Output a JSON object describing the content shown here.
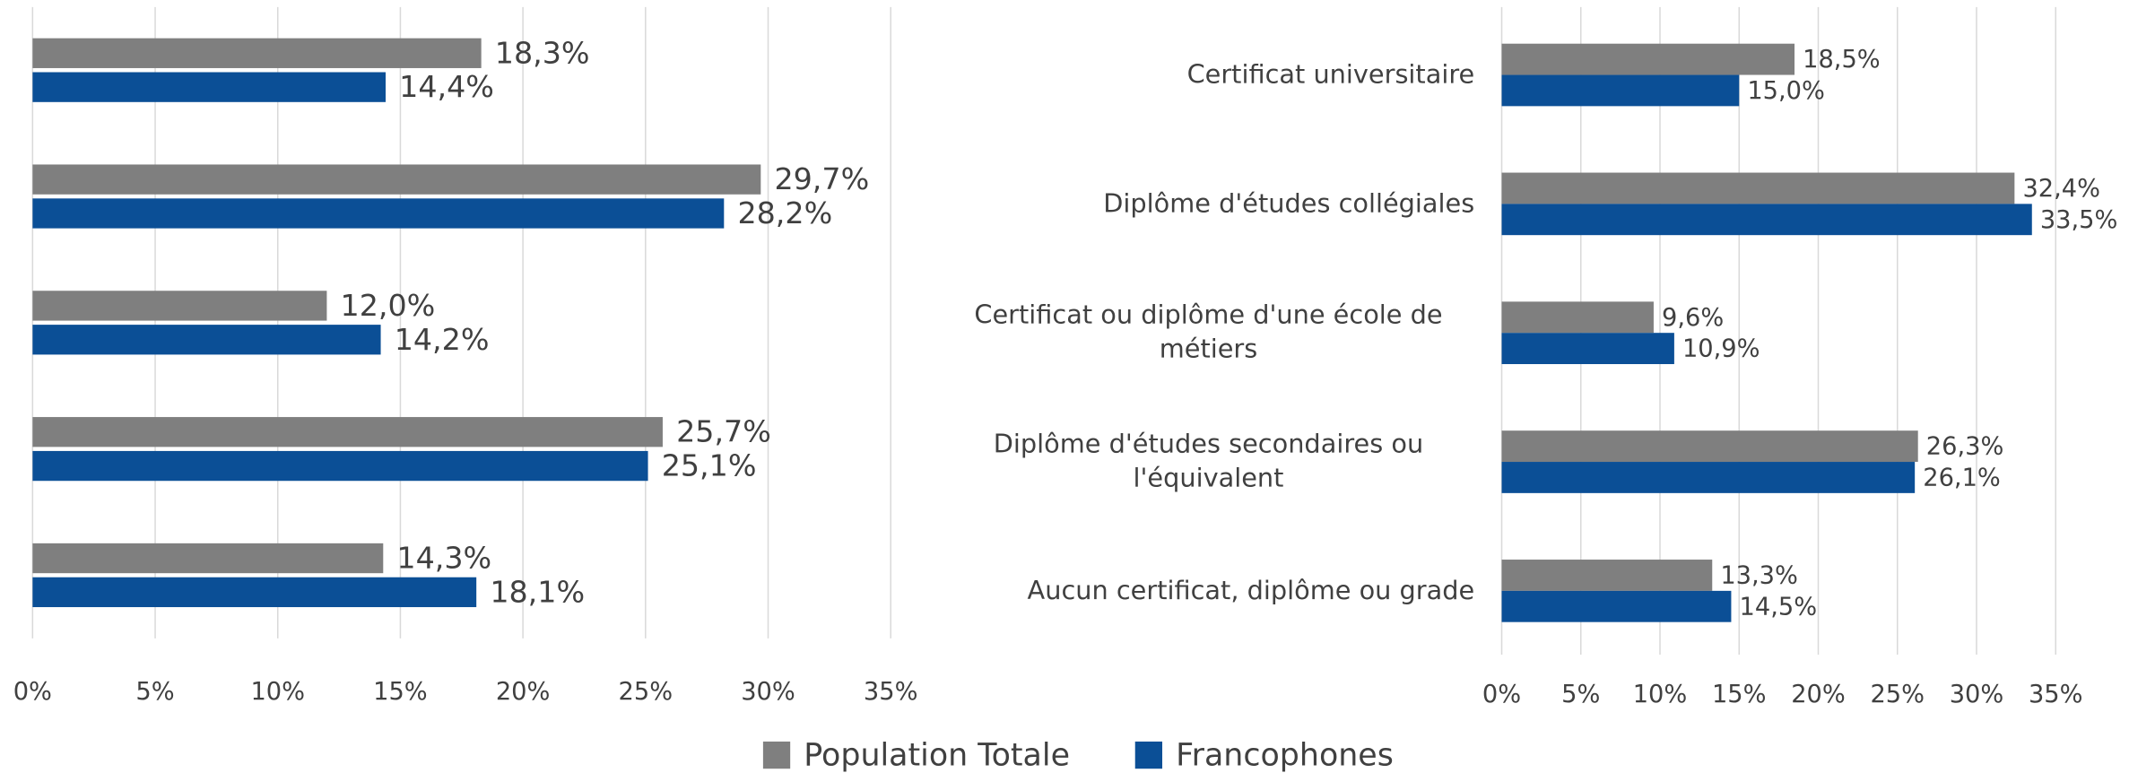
{
  "chart_data": [
    {
      "type": "bar",
      "orientation": "horizontal",
      "categories": [
        null,
        null,
        null,
        null,
        null
      ],
      "series": [
        {
          "name": "Population Totale",
          "color": "#7f7f7f",
          "values": [
            18.3,
            29.7,
            12.0,
            25.7,
            14.3
          ],
          "value_labels": [
            "18,3%",
            "29,7%",
            "12,0%",
            "25,7%",
            "14,3%"
          ]
        },
        {
          "name": "Francophones",
          "color": "#0b4f96",
          "values": [
            14.4,
            28.2,
            14.2,
            25.1,
            18.1
          ],
          "value_labels": [
            "14,4%",
            "28,2%",
            "14,2%",
            "25,1%",
            "18,1%"
          ]
        }
      ],
      "xlim": [
        0,
        35
      ],
      "xticks": [
        {
          "value": 0,
          "label": "0%"
        },
        {
          "value": 5,
          "label": "5%"
        },
        {
          "value": 10,
          "label": "10%"
        },
        {
          "value": 15,
          "label": "15%"
        },
        {
          "value": 20,
          "label": "20%"
        },
        {
          "value": 25,
          "label": "25%"
        },
        {
          "value": 30,
          "label": "30%"
        },
        {
          "value": 35,
          "label": "35%"
        }
      ],
      "grid": true
    },
    {
      "type": "bar",
      "orientation": "horizontal",
      "categories": [
        "Certificat universitaire",
        "Diplôme d'études collégiales",
        "Certificat ou diplôme d'une école de métiers",
        "Diplôme d'études secondaires ou l'équivalent",
        "Aucun certificat, diplôme ou grade"
      ],
      "series": [
        {
          "color": "#7f7f7f",
          "values": [
            18.5,
            32.4,
            9.6,
            26.3,
            13.3
          ],
          "value_labels": [
            "18,5%",
            "32,4%",
            "9,6%",
            "26,3%",
            "13,3%"
          ]
        },
        {
          "color": "#0b4f96",
          "values": [
            15.0,
            33.5,
            10.9,
            26.1,
            14.5
          ],
          "value_labels": [
            "15,0%",
            "33,5%",
            "10,9%",
            "26,1%",
            "14,5%"
          ]
        }
      ],
      "xlim": [
        0,
        35
      ],
      "xticks": [
        {
          "value": 0,
          "label": "0%"
        },
        {
          "value": 5,
          "label": "5%"
        },
        {
          "value": 10,
          "label": "10%"
        },
        {
          "value": 15,
          "label": "15%"
        },
        {
          "value": 20,
          "label": "20%"
        },
        {
          "value": 25,
          "label": "25%"
        },
        {
          "value": 30,
          "label": "30%"
        },
        {
          "value": 35,
          "label": "35%"
        }
      ],
      "grid": true
    }
  ]
}
